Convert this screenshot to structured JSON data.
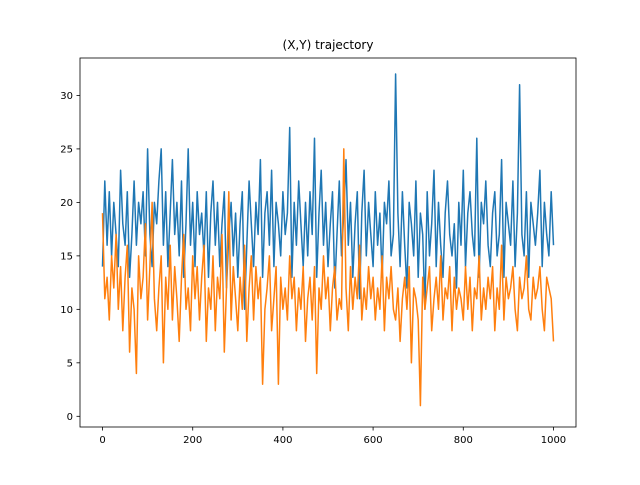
{
  "chart_data": {
    "type": "line",
    "title": "(X,Y) trajectory",
    "xlabel": "",
    "ylabel": "",
    "xlim": [
      -50,
      1050
    ],
    "ylim": [
      -1,
      33.5
    ],
    "xticks": [
      0,
      200,
      400,
      600,
      800,
      1000
    ],
    "yticks": [
      0,
      5,
      10,
      15,
      20,
      25,
      30
    ],
    "grid": false,
    "legend": "none",
    "series": [
      {
        "color": "#1f77b4",
        "x": [
          0,
          5,
          10,
          15,
          20,
          25,
          30,
          35,
          40,
          45,
          50,
          55,
          60,
          65,
          70,
          75,
          80,
          85,
          90,
          95,
          100,
          105,
          110,
          115,
          120,
          125,
          130,
          135,
          140,
          145,
          150,
          155,
          160,
          165,
          170,
          175,
          180,
          185,
          190,
          195,
          200,
          205,
          210,
          215,
          220,
          225,
          230,
          235,
          240,
          245,
          250,
          255,
          260,
          265,
          270,
          275,
          280,
          285,
          290,
          295,
          300,
          305,
          310,
          315,
          320,
          325,
          330,
          335,
          340,
          345,
          350,
          355,
          360,
          365,
          370,
          375,
          380,
          385,
          390,
          395,
          400,
          405,
          410,
          415,
          420,
          425,
          430,
          435,
          440,
          445,
          450,
          455,
          460,
          465,
          470,
          475,
          480,
          485,
          490,
          495,
          500,
          505,
          510,
          515,
          520,
          525,
          530,
          535,
          540,
          545,
          550,
          555,
          560,
          565,
          570,
          575,
          580,
          585,
          590,
          595,
          600,
          605,
          610,
          615,
          620,
          625,
          630,
          635,
          640,
          645,
          650,
          655,
          660,
          665,
          670,
          675,
          680,
          685,
          690,
          695,
          700,
          705,
          710,
          715,
          720,
          725,
          730,
          735,
          740,
          745,
          750,
          755,
          760,
          765,
          770,
          775,
          780,
          785,
          790,
          795,
          800,
          805,
          810,
          815,
          820,
          825,
          830,
          835,
          840,
          845,
          850,
          855,
          860,
          865,
          870,
          875,
          880,
          885,
          890,
          895,
          900,
          905,
          910,
          915,
          920,
          925,
          930,
          935,
          940,
          945,
          950,
          955,
          960,
          965,
          970,
          975,
          980,
          985,
          990,
          995,
          1000
        ],
        "y": [
          14,
          22,
          16,
          21,
          15,
          20,
          17,
          14,
          23,
          18,
          16,
          21,
          13,
          17,
          22,
          16,
          20,
          18,
          21,
          15,
          25,
          17,
          14,
          20,
          18,
          22,
          25,
          16,
          21,
          14,
          19,
          24,
          17,
          20,
          15,
          22,
          13,
          18,
          25,
          16,
          20,
          14,
          21,
          17,
          19,
          15,
          21,
          13,
          19,
          22,
          16,
          20,
          14,
          18,
          21,
          12,
          17,
          20,
          15,
          19,
          13,
          18,
          21,
          10,
          16,
          22,
          18,
          14,
          20,
          17,
          24,
          13,
          19,
          21,
          16,
          23,
          14,
          20,
          18,
          15,
          21,
          17,
          19,
          27,
          13,
          20,
          16,
          22,
          18,
          14,
          20,
          15,
          21,
          17,
          26,
          13,
          19,
          23,
          16,
          20,
          14,
          18,
          21,
          12,
          17,
          22,
          15,
          19,
          24,
          16,
          20,
          13,
          18,
          21,
          11,
          19,
          23,
          15,
          20,
          17,
          14,
          21,
          16,
          19,
          13,
          20,
          18,
          22,
          15,
          17,
          32,
          19,
          14,
          21,
          16,
          12,
          20,
          18,
          15,
          22,
          13,
          19,
          17,
          10,
          21,
          15,
          18,
          23,
          14,
          20,
          16,
          13,
          19,
          22,
          17,
          15,
          18,
          12,
          20,
          16,
          23,
          14,
          19,
          21,
          17,
          15,
          26,
          13,
          20,
          18,
          22,
          16,
          14,
          19,
          21,
          15,
          17,
          24,
          13,
          20,
          18,
          16,
          22,
          14,
          19,
          31,
          17,
          15,
          21,
          13,
          20,
          18,
          16,
          19,
          23,
          14,
          20,
          17,
          15,
          21,
          16
        ]
      },
      {
        "color": "#ff7f0e",
        "x": [
          0,
          5,
          10,
          15,
          20,
          25,
          30,
          35,
          40,
          45,
          50,
          55,
          60,
          65,
          70,
          75,
          80,
          85,
          90,
          95,
          100,
          105,
          110,
          115,
          120,
          125,
          130,
          135,
          140,
          145,
          150,
          155,
          160,
          165,
          170,
          175,
          180,
          185,
          190,
          195,
          200,
          205,
          210,
          215,
          220,
          225,
          230,
          235,
          240,
          245,
          250,
          255,
          260,
          265,
          270,
          275,
          280,
          285,
          290,
          295,
          300,
          305,
          310,
          315,
          320,
          325,
          330,
          335,
          340,
          345,
          350,
          355,
          360,
          365,
          370,
          375,
          380,
          385,
          390,
          395,
          400,
          405,
          410,
          415,
          420,
          425,
          430,
          435,
          440,
          445,
          450,
          455,
          460,
          465,
          470,
          475,
          480,
          485,
          490,
          495,
          500,
          505,
          510,
          515,
          520,
          525,
          530,
          535,
          540,
          545,
          550,
          555,
          560,
          565,
          570,
          575,
          580,
          585,
          590,
          595,
          600,
          605,
          610,
          615,
          620,
          625,
          630,
          635,
          640,
          645,
          650,
          655,
          660,
          665,
          670,
          675,
          680,
          685,
          690,
          695,
          700,
          705,
          710,
          715,
          720,
          725,
          730,
          735,
          740,
          745,
          750,
          755,
          760,
          765,
          770,
          775,
          780,
          785,
          790,
          795,
          800,
          805,
          810,
          815,
          820,
          825,
          830,
          835,
          840,
          845,
          850,
          855,
          860,
          865,
          870,
          875,
          880,
          885,
          890,
          895,
          900,
          905,
          910,
          915,
          920,
          925,
          930,
          935,
          940,
          945,
          950,
          955,
          960,
          965,
          970,
          975,
          980,
          985,
          990,
          995,
          1000
        ],
        "y": [
          19,
          11,
          13,
          9,
          15,
          12,
          17,
          10,
          14,
          8,
          13,
          16,
          6,
          12,
          10,
          4,
          15,
          11,
          13,
          18,
          9,
          14,
          20,
          11,
          8,
          12,
          15,
          5,
          13,
          10,
          16,
          9,
          14,
          11,
          7,
          13,
          17,
          10,
          12,
          8,
          15,
          11,
          14,
          9,
          13,
          16,
          7,
          12,
          10,
          15,
          8,
          13,
          11,
          17,
          6,
          12,
          21,
          9,
          14,
          11,
          8,
          13,
          10,
          16,
          7,
          12,
          15,
          9,
          14,
          11,
          13,
          3,
          10,
          12,
          15,
          8,
          11,
          14,
          3,
          13,
          10,
          12,
          9,
          15,
          11,
          13,
          8,
          12,
          10,
          14,
          7,
          11,
          13,
          9,
          14,
          4,
          12,
          10,
          15,
          11,
          13,
          8,
          12,
          14,
          9,
          11,
          10,
          25,
          12,
          8,
          14,
          10,
          13,
          11,
          16,
          9,
          12,
          10,
          14,
          11,
          13,
          9,
          12,
          10,
          15,
          8,
          13,
          11,
          14,
          10,
          9,
          12,
          7,
          11,
          13,
          10,
          14,
          5,
          12,
          11,
          9,
          1,
          13,
          10,
          12,
          14,
          8,
          11,
          13,
          10,
          15,
          9,
          12,
          11,
          14,
          8,
          13,
          10,
          12,
          11,
          9,
          14,
          10,
          13,
          8,
          12,
          11,
          15,
          9,
          12,
          10,
          13,
          11,
          14,
          8,
          12,
          10,
          16,
          9,
          13,
          11,
          12,
          14,
          10,
          8,
          13,
          11,
          12,
          15,
          10,
          9,
          13,
          11,
          12,
          14,
          10,
          8,
          13,
          12,
          11,
          7
        ]
      }
    ]
  }
}
